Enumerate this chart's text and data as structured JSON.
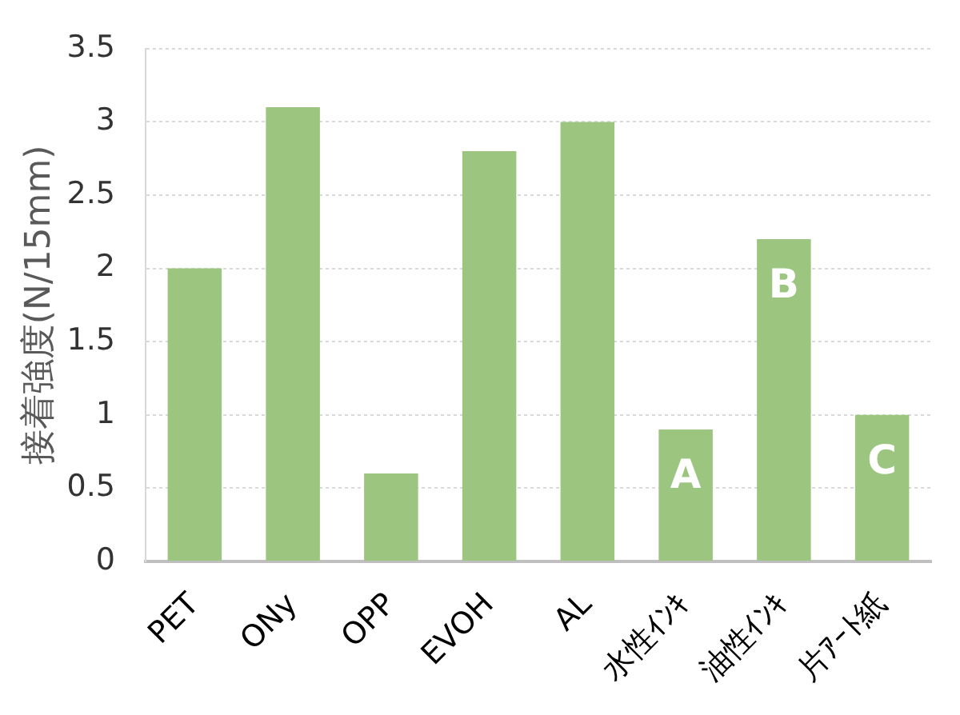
{
  "chart_data": {
    "type": "bar",
    "ylabel": "接着強度(N/15mm)",
    "categories": [
      "PET",
      "ONy",
      "OPP",
      "EVOH",
      "AL",
      "水性ｲﾝｷ",
      "油性ｲﾝｷ",
      "片ｱｰﾄ紙"
    ],
    "values": [
      2.0,
      3.1,
      0.6,
      2.8,
      3.0,
      0.9,
      2.2,
      1.0
    ],
    "color": "#9cc57f",
    "value_labels": [
      null,
      null,
      null,
      null,
      null,
      "A",
      "B",
      "C"
    ],
    "ylim": [
      0,
      3.5
    ],
    "yticks": [
      0,
      0.5,
      1,
      1.5,
      2,
      2.5,
      3,
      3.5
    ],
    "grid": "y"
  }
}
